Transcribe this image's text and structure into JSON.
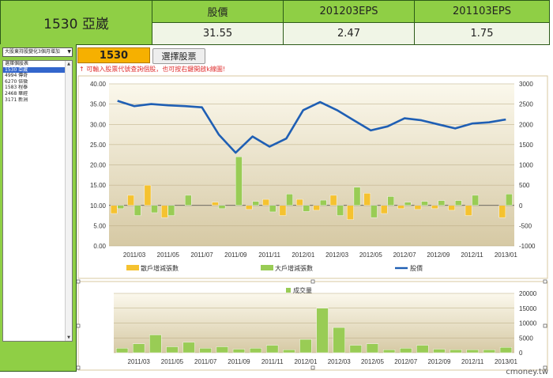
{
  "header": {
    "stock_title": "1530 亞崴",
    "columns": [
      {
        "label": "股價",
        "value": "31.55"
      },
      {
        "label": "201203EPS",
        "value": "2.47"
      },
      {
        "label": "201103EPS",
        "value": "1.75"
      }
    ]
  },
  "sidebar": {
    "dropdown_value": "大股東持股變化3個月增加",
    "list": [
      {
        "label": "選擇個股表"
      },
      {
        "label": "1530 亞崴",
        "selected": true
      },
      {
        "label": "4994 傳奇"
      },
      {
        "label": "6270 倍微"
      },
      {
        "label": "1583 程泰"
      },
      {
        "label": "2468 華經"
      },
      {
        "label": "3171 新洲"
      }
    ]
  },
  "controls": {
    "stock_code": "1530",
    "choose_button": "選擇股票",
    "hint": "↑ 可輸入股票代號查詢個股，也可按右鍵開啟k線圖!"
  },
  "brand": "cmoney.tw",
  "colors": {
    "green": "#8fcf45",
    "orange": "#f6b000",
    "price_line": "#1f5fb4",
    "retail_bar": "#f5c230",
    "big_bar": "#99cc55"
  },
  "chart_data": [
    {
      "type": "bar",
      "x": [
        "2011/02",
        "2011/03",
        "2011/04",
        "2011/05",
        "2011/06",
        "2011/07",
        "2011/08",
        "2011/09",
        "2011/10",
        "2011/11",
        "2011/12",
        "2012/01",
        "2012/02",
        "2012/03",
        "2012/04",
        "2012/05",
        "2012/06",
        "2012/07",
        "2012/08",
        "2012/09",
        "2012/10",
        "2012/11",
        "2012/12",
        "2013/01"
      ],
      "xticks": [
        "2011/03",
        "2011/05",
        "2011/07",
        "2011/09",
        "2011/11",
        "2012/01",
        "2012/03",
        "2012/05",
        "2012/07",
        "2012/09",
        "2012/11",
        "2013/01"
      ],
      "left_axis": {
        "ylim": [
          0,
          40
        ],
        "ticks": [
          "0.00",
          "5.00",
          "10.00",
          "15.00",
          "20.00",
          "25.00",
          "30.00",
          "35.00",
          "40.00"
        ]
      },
      "right_axis": {
        "ylim": [
          -1000,
          3000
        ],
        "ticks": [
          "-1000",
          "-500",
          "0",
          "500",
          "1000",
          "1500",
          "2000",
          "2500",
          "3000"
        ]
      },
      "series": [
        {
          "name": "散戶增減張數",
          "axis": "right",
          "values": [
            -200,
            250,
            500,
            -300,
            0,
            0,
            80,
            0,
            -100,
            150,
            -250,
            150,
            -120,
            250,
            -350,
            300,
            -200,
            -80,
            -100,
            -80,
            -120,
            -250,
            0,
            -300
          ]
        },
        {
          "name": "大戶增減張數",
          "axis": "right",
          "values": [
            -80,
            -250,
            -180,
            -250,
            250,
            0,
            -80,
            1200,
            100,
            -160,
            280,
            -150,
            130,
            -250,
            450,
            -300,
            220,
            80,
            100,
            120,
            120,
            250,
            0,
            280
          ]
        },
        {
          "name": "股價",
          "axis": "left",
          "type": "line",
          "values": [
            35.8,
            34.5,
            35.0,
            34.7,
            34.5,
            34.2,
            27.5,
            23.0,
            27.0,
            24.5,
            26.5,
            33.5,
            35.5,
            33.5,
            31.0,
            28.5,
            29.5,
            31.5,
            31.0,
            30.0,
            29.0,
            30.2,
            30.5,
            31.2
          ]
        }
      ],
      "legend_placement": "bottom"
    },
    {
      "type": "bar",
      "x": [
        "2011/02",
        "2011/03",
        "2011/04",
        "2011/05",
        "2011/06",
        "2011/07",
        "2011/08",
        "2011/09",
        "2011/10",
        "2011/11",
        "2011/12",
        "2012/01",
        "2012/02",
        "2012/03",
        "2012/04",
        "2012/05",
        "2012/06",
        "2012/07",
        "2012/08",
        "2012/09",
        "2012/10",
        "2012/11",
        "2012/12",
        "2013/01"
      ],
      "xticks": [
        "2011/03",
        "2011/05",
        "2011/07",
        "2011/09",
        "2011/11",
        "2012/01",
        "2012/03",
        "2012/05",
        "2012/07",
        "2012/09",
        "2012/11",
        "2013/01"
      ],
      "right_axis": {
        "ylim": [
          0,
          20000
        ],
        "ticks": [
          "0",
          "5000",
          "10000",
          "15000",
          "20000"
        ]
      },
      "series": [
        {
          "name": "成交量",
          "values": [
            1500,
            3000,
            6000,
            2000,
            3500,
            1500,
            2000,
            1200,
            1500,
            2500,
            1000,
            4500,
            15000,
            8500,
            2500,
            3000,
            1000,
            1500,
            2500,
            1200,
            1000,
            1000,
            1000,
            1800
          ]
        }
      ],
      "legend_placement": "top"
    }
  ]
}
